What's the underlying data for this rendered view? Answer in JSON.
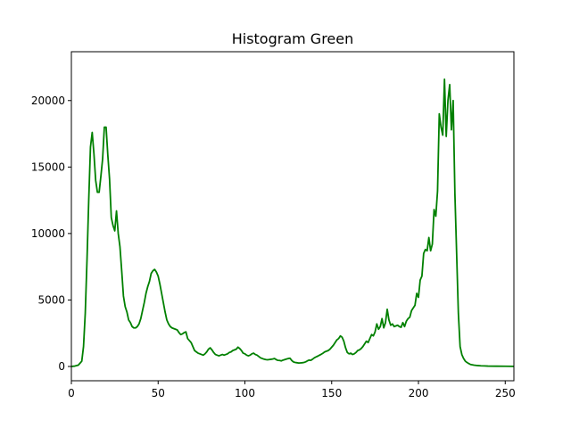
{
  "chart_data": {
    "type": "line",
    "title": "Histogram Green",
    "xlabel": "",
    "ylabel": "",
    "xlim": [
      0,
      255
    ],
    "ylim": [
      0,
      22600
    ],
    "x_ticks": [
      0,
      50,
      100,
      150,
      200,
      250
    ],
    "y_ticks": [
      0,
      5000,
      10000,
      15000,
      20000
    ],
    "grid": false,
    "series": [
      {
        "color": "#008000",
        "points": [
          [
            0,
            0
          ],
          [
            2,
            30
          ],
          [
            4,
            100
          ],
          [
            6,
            400
          ],
          [
            7,
            1500
          ],
          [
            8,
            4000
          ],
          [
            9,
            8000
          ],
          [
            10,
            12500
          ],
          [
            11,
            16500
          ],
          [
            12,
            17600
          ],
          [
            13,
            16000
          ],
          [
            14,
            14000
          ],
          [
            15,
            13100
          ],
          [
            16,
            13100
          ],
          [
            17,
            14300
          ],
          [
            18,
            15600
          ],
          [
            19,
            18000
          ],
          [
            20,
            18000
          ],
          [
            21,
            15900
          ],
          [
            22,
            14100
          ],
          [
            23,
            11200
          ],
          [
            24,
            10600
          ],
          [
            25,
            10200
          ],
          [
            26,
            11700
          ],
          [
            27,
            10000
          ],
          [
            28,
            9000
          ],
          [
            29,
            7200
          ],
          [
            30,
            5300
          ],
          [
            31,
            4500
          ],
          [
            32,
            4100
          ],
          [
            33,
            3500
          ],
          [
            34,
            3300
          ],
          [
            35,
            3000
          ],
          [
            36,
            2900
          ],
          [
            37,
            2900
          ],
          [
            38,
            3000
          ],
          [
            39,
            3200
          ],
          [
            40,
            3600
          ],
          [
            41,
            4200
          ],
          [
            42,
            4800
          ],
          [
            43,
            5500
          ],
          [
            44,
            6000
          ],
          [
            45,
            6400
          ],
          [
            46,
            7000
          ],
          [
            47,
            7200
          ],
          [
            48,
            7300
          ],
          [
            49,
            7100
          ],
          [
            50,
            6800
          ],
          [
            51,
            6200
          ],
          [
            52,
            5500
          ],
          [
            53,
            4800
          ],
          [
            54,
            4100
          ],
          [
            55,
            3500
          ],
          [
            56,
            3200
          ],
          [
            57,
            3000
          ],
          [
            58,
            2900
          ],
          [
            59,
            2850
          ],
          [
            60,
            2800
          ],
          [
            61,
            2750
          ],
          [
            62,
            2550
          ],
          [
            63,
            2400
          ],
          [
            64,
            2450
          ],
          [
            65,
            2550
          ],
          [
            66,
            2600
          ],
          [
            67,
            2100
          ],
          [
            68,
            1950
          ],
          [
            69,
            1800
          ],
          [
            70,
            1500
          ],
          [
            71,
            1200
          ],
          [
            72,
            1100
          ],
          [
            73,
            1000
          ],
          [
            74,
            950
          ],
          [
            75,
            900
          ],
          [
            76,
            850
          ],
          [
            77,
            950
          ],
          [
            78,
            1100
          ],
          [
            79,
            1300
          ],
          [
            80,
            1400
          ],
          [
            81,
            1250
          ],
          [
            82,
            1050
          ],
          [
            83,
            900
          ],
          [
            84,
            850
          ],
          [
            85,
            800
          ],
          [
            86,
            850
          ],
          [
            87,
            900
          ],
          [
            88,
            850
          ],
          [
            89,
            900
          ],
          [
            90,
            950
          ],
          [
            91,
            1050
          ],
          [
            92,
            1100
          ],
          [
            93,
            1200
          ],
          [
            94,
            1250
          ],
          [
            95,
            1300
          ],
          [
            96,
            1450
          ],
          [
            97,
            1350
          ],
          [
            98,
            1200
          ],
          [
            99,
            1000
          ],
          [
            100,
            950
          ],
          [
            101,
            850
          ],
          [
            102,
            800
          ],
          [
            103,
            850
          ],
          [
            104,
            950
          ],
          [
            105,
            1000
          ],
          [
            106,
            900
          ],
          [
            107,
            850
          ],
          [
            108,
            750
          ],
          [
            109,
            650
          ],
          [
            110,
            600
          ],
          [
            111,
            550
          ],
          [
            112,
            520
          ],
          [
            113,
            500
          ],
          [
            114,
            520
          ],
          [
            115,
            540
          ],
          [
            116,
            560
          ],
          [
            117,
            600
          ],
          [
            118,
            520
          ],
          [
            119,
            460
          ],
          [
            120,
            450
          ],
          [
            121,
            420
          ],
          [
            122,
            480
          ],
          [
            123,
            520
          ],
          [
            124,
            560
          ],
          [
            125,
            600
          ],
          [
            126,
            620
          ],
          [
            127,
            450
          ],
          [
            128,
            340
          ],
          [
            129,
            300
          ],
          [
            130,
            280
          ],
          [
            131,
            260
          ],
          [
            132,
            270
          ],
          [
            133,
            280
          ],
          [
            134,
            300
          ],
          [
            135,
            350
          ],
          [
            136,
            420
          ],
          [
            137,
            480
          ],
          [
            138,
            460
          ],
          [
            139,
            550
          ],
          [
            140,
            650
          ],
          [
            141,
            720
          ],
          [
            142,
            780
          ],
          [
            143,
            850
          ],
          [
            144,
            920
          ],
          [
            145,
            1000
          ],
          [
            146,
            1100
          ],
          [
            147,
            1150
          ],
          [
            148,
            1200
          ],
          [
            149,
            1300
          ],
          [
            150,
            1450
          ],
          [
            151,
            1600
          ],
          [
            152,
            1800
          ],
          [
            153,
            2000
          ],
          [
            154,
            2100
          ],
          [
            155,
            2300
          ],
          [
            156,
            2200
          ],
          [
            157,
            1900
          ],
          [
            158,
            1400
          ],
          [
            159,
            1050
          ],
          [
            160,
            950
          ],
          [
            161,
            1000
          ],
          [
            162,
            900
          ],
          [
            163,
            950
          ],
          [
            164,
            1050
          ],
          [
            165,
            1200
          ],
          [
            166,
            1250
          ],
          [
            167,
            1350
          ],
          [
            168,
            1500
          ],
          [
            169,
            1700
          ],
          [
            170,
            1900
          ],
          [
            171,
            1800
          ],
          [
            172,
            2100
          ],
          [
            173,
            2400
          ],
          [
            174,
            2300
          ],
          [
            175,
            2600
          ],
          [
            176,
            3200
          ],
          [
            177,
            2800
          ],
          [
            178,
            3000
          ],
          [
            179,
            3600
          ],
          [
            180,
            2900
          ],
          [
            181,
            3300
          ],
          [
            182,
            4300
          ],
          [
            183,
            3500
          ],
          [
            184,
            3100
          ],
          [
            185,
            3200
          ],
          [
            186,
            3000
          ],
          [
            187,
            3050
          ],
          [
            188,
            3100
          ],
          [
            189,
            3000
          ],
          [
            190,
            2950
          ],
          [
            191,
            3300
          ],
          [
            192,
            3000
          ],
          [
            193,
            3400
          ],
          [
            194,
            3600
          ],
          [
            195,
            3700
          ],
          [
            196,
            4200
          ],
          [
            197,
            4400
          ],
          [
            198,
            4600
          ],
          [
            199,
            5500
          ],
          [
            200,
            5200
          ],
          [
            201,
            6500
          ],
          [
            202,
            6800
          ],
          [
            203,
            8500
          ],
          [
            204,
            8800
          ],
          [
            205,
            8700
          ],
          [
            206,
            9700
          ],
          [
            207,
            8700
          ],
          [
            208,
            9200
          ],
          [
            209,
            11800
          ],
          [
            210,
            11300
          ],
          [
            211,
            13200
          ],
          [
            212,
            19000
          ],
          [
            213,
            18000
          ],
          [
            214,
            17400
          ],
          [
            215,
            21600
          ],
          [
            216,
            17300
          ],
          [
            217,
            20000
          ],
          [
            218,
            21200
          ],
          [
            219,
            17800
          ],
          [
            220,
            20000
          ],
          [
            221,
            13000
          ],
          [
            222,
            8500
          ],
          [
            223,
            4000
          ],
          [
            224,
            1500
          ],
          [
            225,
            900
          ],
          [
            226,
            600
          ],
          [
            227,
            400
          ],
          [
            228,
            300
          ],
          [
            229,
            220
          ],
          [
            230,
            150
          ],
          [
            232,
            100
          ],
          [
            234,
            70
          ],
          [
            236,
            50
          ],
          [
            238,
            40
          ],
          [
            240,
            30
          ],
          [
            245,
            20
          ],
          [
            250,
            15
          ],
          [
            255,
            10
          ]
        ]
      }
    ]
  }
}
